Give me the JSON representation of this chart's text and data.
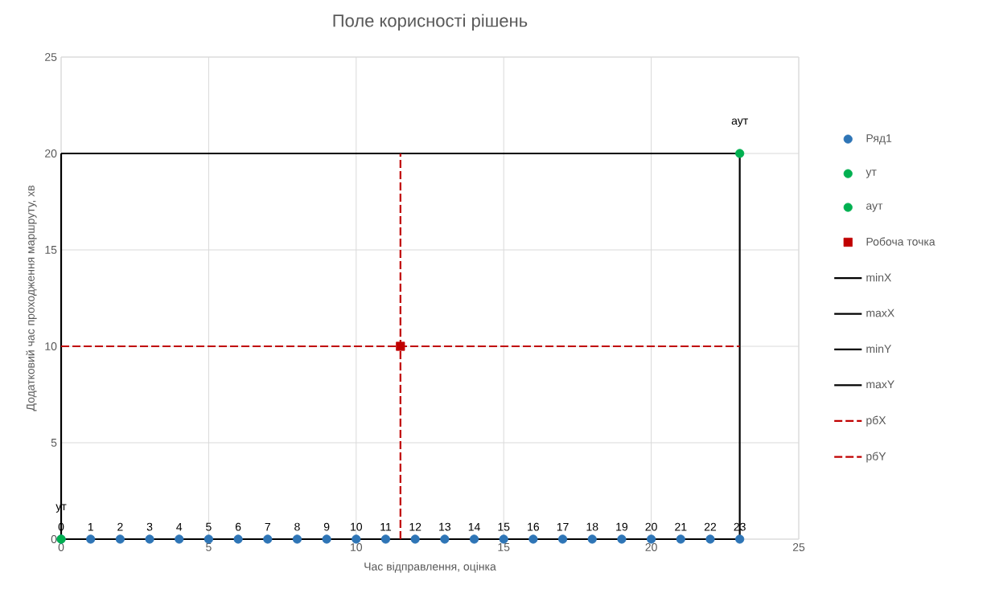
{
  "chart_data": {
    "type": "scatter",
    "title": "Поле корисності рішень",
    "xlabel": "Час відправлення, оцінка",
    "ylabel": "Додатковий час проходження маршруту, хв",
    "xlim": [
      0,
      25
    ],
    "ylim": [
      0,
      25
    ],
    "xticks": [
      0,
      5,
      10,
      15,
      20,
      25
    ],
    "yticks": [
      0,
      5,
      10,
      15,
      20,
      25
    ],
    "grid": true,
    "legend": "right",
    "series": [
      {
        "name": "Ряд1",
        "marker": "circle",
        "color": "#2e75b6",
        "x": [
          0,
          1,
          2,
          3,
          4,
          5,
          6,
          7,
          8,
          9,
          10,
          11,
          12,
          13,
          14,
          15,
          16,
          17,
          18,
          19,
          20,
          21,
          22,
          23
        ],
        "values": [
          0,
          0,
          0,
          0,
          0,
          0,
          0,
          0,
          0,
          0,
          0,
          0,
          0,
          0,
          0,
          0,
          0,
          0,
          0,
          0,
          0,
          0,
          0,
          0
        ]
      },
      {
        "name": "ут",
        "marker": "circle",
        "color": "#00b050",
        "x": [
          0
        ],
        "values": [
          0
        ],
        "value_labels": [
          "ут"
        ]
      },
      {
        "name": "аут",
        "marker": "circle",
        "color": "#00b050",
        "x": [
          23
        ],
        "values": [
          20
        ],
        "value_labels": [
          "аут"
        ]
      },
      {
        "name": "Робоча точка",
        "marker": "square",
        "color": "#c00000",
        "x": [
          11.5
        ],
        "values": [
          10
        ]
      },
      {
        "name": "minX",
        "type": "line",
        "line_style": "solid",
        "color": "#000000",
        "x": [
          0,
          0
        ],
        "values": [
          0,
          20
        ]
      },
      {
        "name": "maxX",
        "type": "line",
        "line_style": "solid",
        "color": "#000000",
        "x": [
          23,
          23
        ],
        "values": [
          0,
          20
        ]
      },
      {
        "name": "minY",
        "type": "line",
        "line_style": "solid",
        "color": "#000000",
        "x": [
          0,
          23
        ],
        "values": [
          0,
          0
        ]
      },
      {
        "name": "maxY",
        "type": "line",
        "line_style": "solid",
        "color": "#000000",
        "x": [
          0,
          23
        ],
        "values": [
          20,
          20
        ]
      },
      {
        "name": "рбХ",
        "type": "line",
        "line_style": "dashed",
        "color": "#c00000",
        "x": [
          11.5,
          11.5
        ],
        "values": [
          0,
          20
        ]
      },
      {
        "name": "рбY",
        "type": "line",
        "line_style": "dashed",
        "color": "#c00000",
        "x": [
          0,
          23
        ],
        "values": [
          10,
          10
        ]
      }
    ],
    "annotations": [
      {
        "text": "0",
        "x": 0,
        "y": 0
      },
      {
        "text": "1",
        "x": 1,
        "y": 0
      },
      {
        "text": "2",
        "x": 2,
        "y": 0
      },
      {
        "text": "3",
        "x": 3,
        "y": 0
      },
      {
        "text": "4",
        "x": 4,
        "y": 0
      },
      {
        "text": "5",
        "x": 5,
        "y": 0
      },
      {
        "text": "6",
        "x": 6,
        "y": 0
      },
      {
        "text": "7",
        "x": 7,
        "y": 0
      },
      {
        "text": "8",
        "x": 8,
        "y": 0
      },
      {
        "text": "9",
        "x": 9,
        "y": 0
      },
      {
        "text": "10",
        "x": 10,
        "y": 0
      },
      {
        "text": "11",
        "x": 11,
        "y": 0
      },
      {
        "text": "12",
        "x": 12,
        "y": 0
      },
      {
        "text": "13",
        "x": 13,
        "y": 0
      },
      {
        "text": "14",
        "x": 14,
        "y": 0
      },
      {
        "text": "15",
        "x": 15,
        "y": 0
      },
      {
        "text": "16",
        "x": 16,
        "y": 0
      },
      {
        "text": "17",
        "x": 17,
        "y": 0
      },
      {
        "text": "18",
        "x": 18,
        "y": 0
      },
      {
        "text": "19",
        "x": 19,
        "y": 0
      },
      {
        "text": "20",
        "x": 20,
        "y": 0
      },
      {
        "text": "21",
        "x": 21,
        "y": 0
      },
      {
        "text": "22",
        "x": 22,
        "y": 0
      },
      {
        "text": "23",
        "x": 23,
        "y": 0
      }
    ]
  }
}
